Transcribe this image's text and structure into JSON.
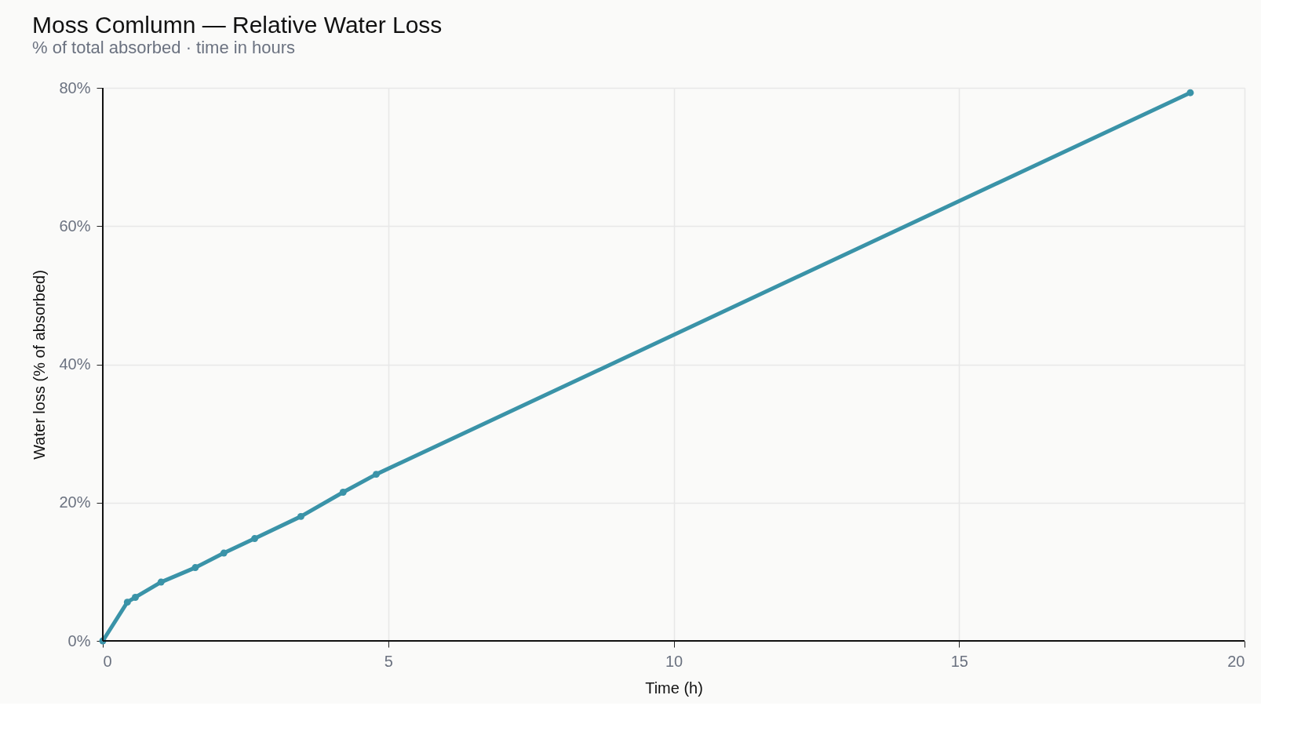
{
  "chart_data": {
    "type": "line",
    "title": "Moss Comlumn — Relative Water Loss",
    "subtitle": "% of total absorbed · time in hours",
    "xlabel": "Time (h)",
    "ylabel": "Water loss (% of absorbed)",
    "x": [
      0,
      0.43,
      0.57,
      1.02,
      1.62,
      2.12,
      2.66,
      3.47,
      4.21,
      4.79,
      19.05
    ],
    "series": [
      {
        "color": "#3a93a8",
        "values": [
          0,
          5.6,
          6.3,
          8.5,
          10.6,
          12.7,
          14.8,
          18.0,
          21.5,
          24.1,
          79.3
        ]
      }
    ],
    "xlim": [
      0,
      20
    ],
    "xticks": [
      0,
      5,
      10,
      15,
      20
    ],
    "ylim": [
      0,
      80
    ],
    "yticks": [
      {
        "value": 0,
        "label": "0%"
      },
      {
        "value": 20,
        "label": "20%"
      },
      {
        "value": 40,
        "label": "40%"
      },
      {
        "value": 60,
        "label": "60%"
      },
      {
        "value": 80,
        "label": "80%"
      }
    ],
    "grid": true,
    "marker": "circle",
    "line_style": "solid",
    "legend": false
  }
}
